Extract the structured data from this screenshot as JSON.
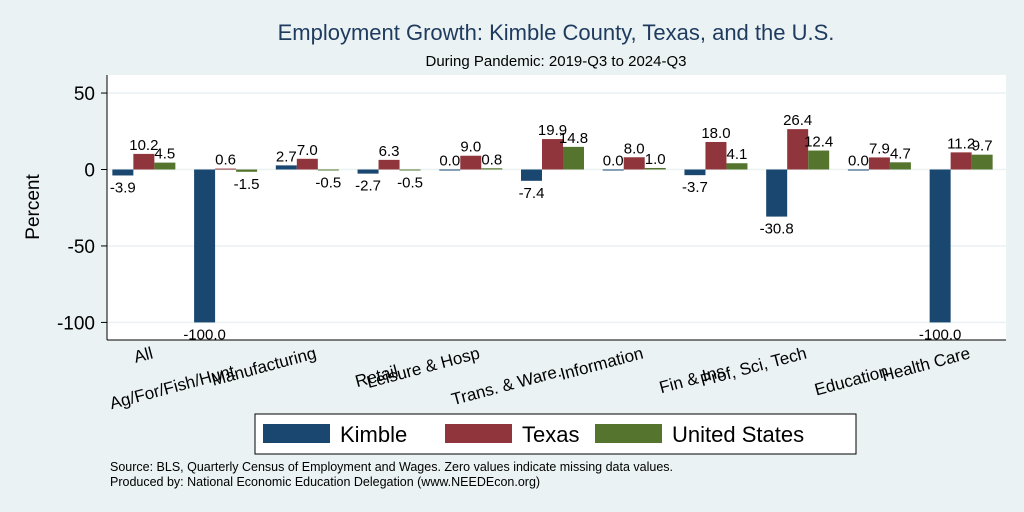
{
  "chart_data": {
    "type": "bar",
    "title": "Employment Growth: Kimble County, Texas, and the U.S.",
    "subtitle": "During Pandemic: 2019-Q3 to 2024-Q3",
    "xlabel": "",
    "ylabel": "Percent",
    "ylim": [
      -111.5,
      61.8
    ],
    "yticks": [
      50,
      0,
      -50,
      -100
    ],
    "grid": true,
    "legend_position": "bottom",
    "categories": [
      "All",
      "Ag/For/Fish/Hunt",
      "Manufacturing",
      "Retail",
      "Leisure & Hosp",
      "Trans. & Ware.",
      "Information",
      "Fin & Ins",
      "Prof, Sci, Tech",
      "Education",
      "Health Care"
    ],
    "series": [
      {
        "name": "Kimble",
        "color": "#1a476f",
        "values": [
          -3.9,
          -100.0,
          2.7,
          -2.7,
          0.0,
          -7.4,
          0.0,
          -3.7,
          -30.8,
          0.0,
          -100.0
        ]
      },
      {
        "name": "Texas",
        "color": "#90353b",
        "values": [
          10.2,
          0.6,
          7.0,
          6.3,
          9.0,
          19.9,
          8.0,
          18.0,
          26.4,
          7.9,
          11.2
        ]
      },
      {
        "name": "United States",
        "color": "#55752f",
        "values": [
          4.5,
          -1.5,
          -0.5,
          -0.5,
          0.8,
          14.8,
          1.0,
          4.1,
          12.4,
          4.7,
          9.7
        ]
      }
    ],
    "notes": [
      "Source: BLS, Quarterly Census of Employment and Wages. Zero values indicate missing data values.",
      "Produced by: National Economic Education Delegation (www.NEEDEcon.org)"
    ]
  }
}
